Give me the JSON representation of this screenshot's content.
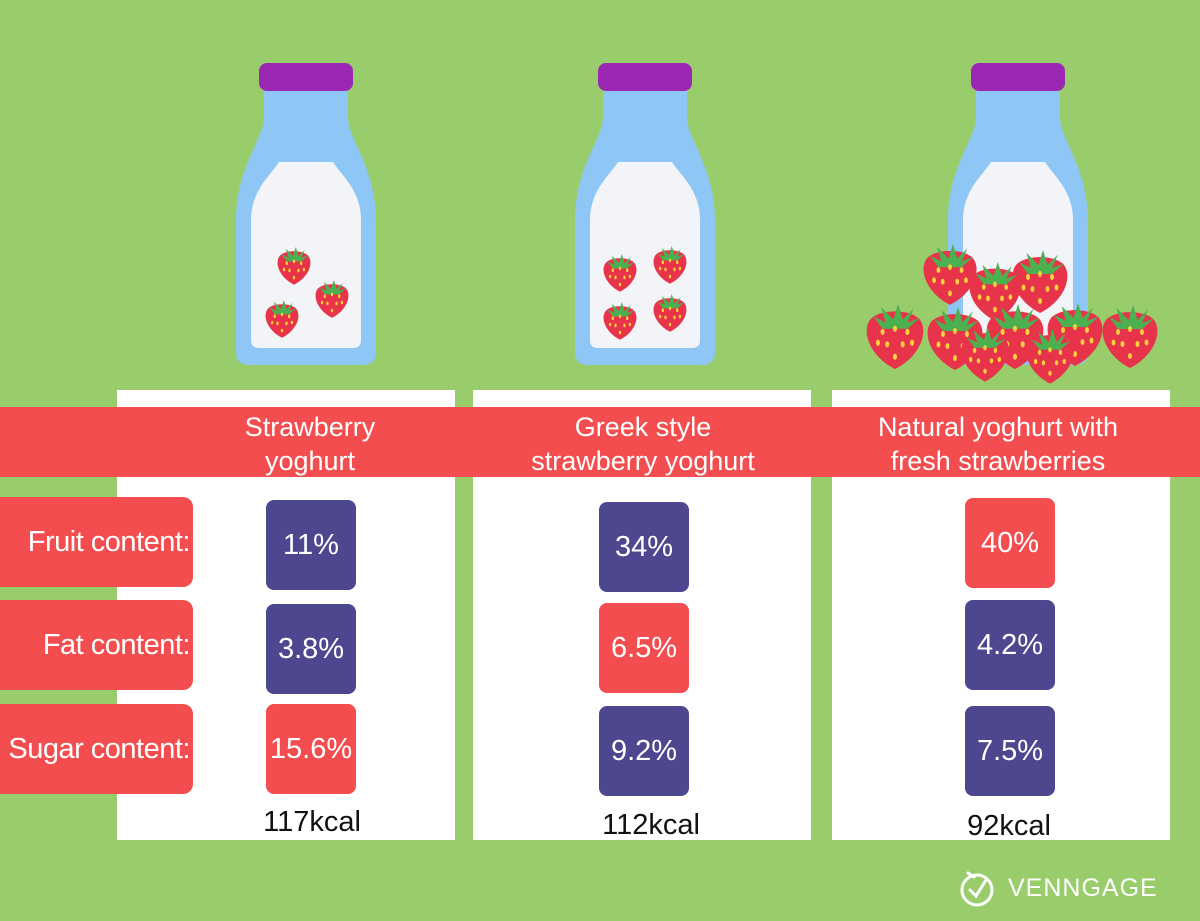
{
  "brand": {
    "name": "VENNGAGE"
  },
  "colors": {
    "background": "#99cd6c",
    "red": "#f34d4f",
    "purple": "#4d4790",
    "bottle": "#8ec7f5",
    "cap": "#9b27b3",
    "milk": "#f2f4f7"
  },
  "row_labels": [
    "Fruit content:",
    "Fat content:",
    "Sugar content:"
  ],
  "chart_data": {
    "type": "table",
    "title": "",
    "columns": [
      "Strawberry yoghurt",
      "Greek style strawberry yoghurt",
      "Natural yoghurt with fresh strawberries"
    ],
    "rows": [
      "Fruit content:",
      "Fat content:",
      "Sugar content:"
    ],
    "products": [
      {
        "name": "Strawberry\nyoghurt",
        "fruit": "11%",
        "fat": "3.8%",
        "sugar": "15.6%",
        "kcal": "117kcal",
        "highlight": [
          "purple",
          "purple",
          "red"
        ],
        "strawberries_in_bottle": 3
      },
      {
        "name": "Greek style\nstrawberry yoghurt",
        "fruit": "34%",
        "fat": "6.5%",
        "sugar": "9.2%",
        "kcal": "112kcal",
        "highlight": [
          "purple",
          "red",
          "purple"
        ],
        "strawberries_in_bottle": 4
      },
      {
        "name": "Natural yoghurt with\nfresh strawberries",
        "fruit": "40%",
        "fat": "4.2%",
        "sugar": "7.5%",
        "kcal": "92kcal",
        "highlight": [
          "red",
          "purple",
          "purple"
        ],
        "strawberries_in_bottle": 0
      }
    ]
  }
}
